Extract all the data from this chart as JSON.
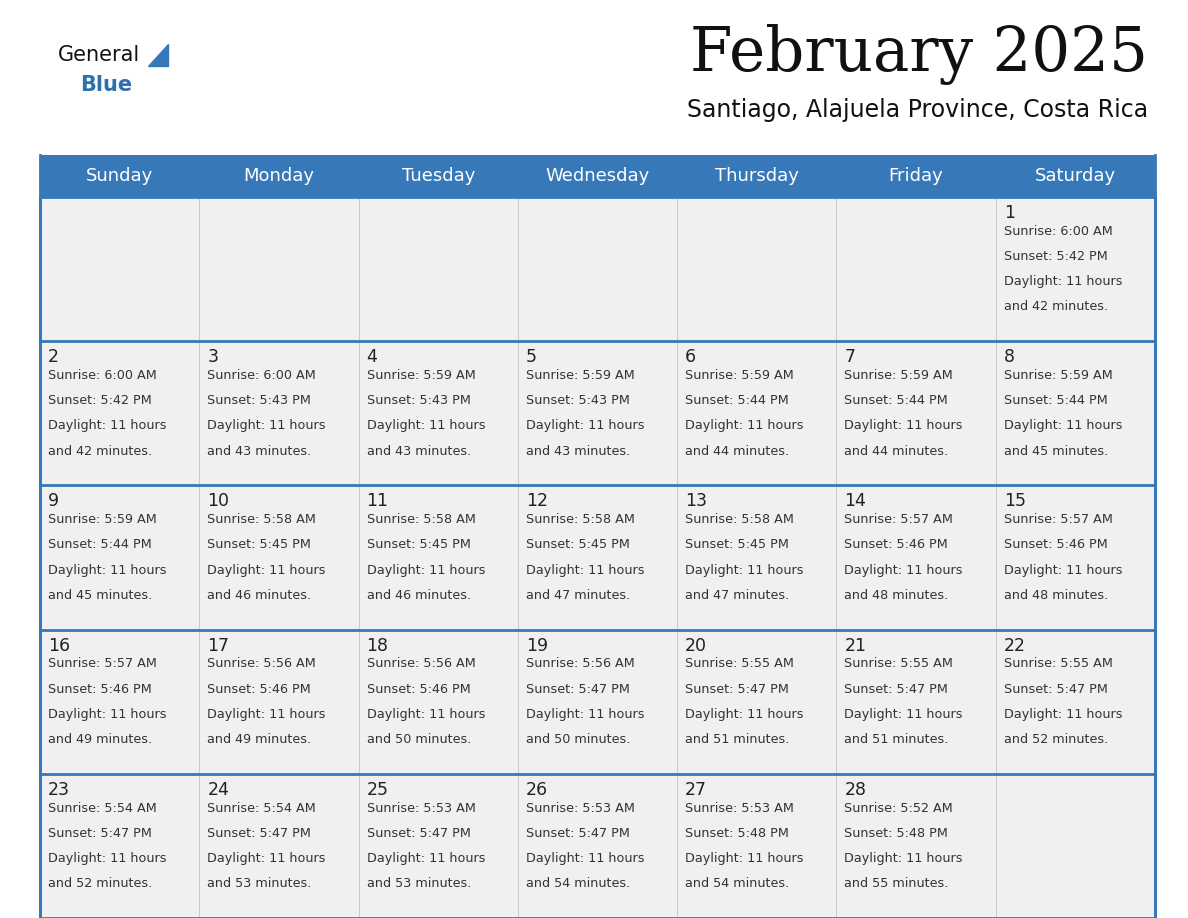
{
  "title": "February 2025",
  "subtitle": "Santiago, Alajuela Province, Costa Rica",
  "days_of_week": [
    "Sunday",
    "Monday",
    "Tuesday",
    "Wednesday",
    "Thursday",
    "Friday",
    "Saturday"
  ],
  "header_bg": "#3778b8",
  "header_text": "#ffffff",
  "cell_bg": "#f0f0f0",
  "divider_color": "#3778b8",
  "text_color": "#333333",
  "day_num_color": "#222222",
  "title_color": "#111111",
  "subtitle_color": "#111111",
  "logo_text_color": "#111111",
  "logo_blue_color": "#2e6fad",
  "logo_triangle_color": "#3778b8",
  "calendar_data": [
    [
      null,
      null,
      null,
      null,
      null,
      null,
      {
        "day": 1,
        "sunrise": "6:00 AM",
        "sunset": "5:42 PM",
        "daylight_a": "Daylight: 11 hours",
        "daylight_b": "and 42 minutes."
      }
    ],
    [
      {
        "day": 2,
        "sunrise": "6:00 AM",
        "sunset": "5:42 PM",
        "daylight_a": "Daylight: 11 hours",
        "daylight_b": "and 42 minutes."
      },
      {
        "day": 3,
        "sunrise": "6:00 AM",
        "sunset": "5:43 PM",
        "daylight_a": "Daylight: 11 hours",
        "daylight_b": "and 43 minutes."
      },
      {
        "day": 4,
        "sunrise": "5:59 AM",
        "sunset": "5:43 PM",
        "daylight_a": "Daylight: 11 hours",
        "daylight_b": "and 43 minutes."
      },
      {
        "day": 5,
        "sunrise": "5:59 AM",
        "sunset": "5:43 PM",
        "daylight_a": "Daylight: 11 hours",
        "daylight_b": "and 43 minutes."
      },
      {
        "day": 6,
        "sunrise": "5:59 AM",
        "sunset": "5:44 PM",
        "daylight_a": "Daylight: 11 hours",
        "daylight_b": "and 44 minutes."
      },
      {
        "day": 7,
        "sunrise": "5:59 AM",
        "sunset": "5:44 PM",
        "daylight_a": "Daylight: 11 hours",
        "daylight_b": "and 44 minutes."
      },
      {
        "day": 8,
        "sunrise": "5:59 AM",
        "sunset": "5:44 PM",
        "daylight_a": "Daylight: 11 hours",
        "daylight_b": "and 45 minutes."
      }
    ],
    [
      {
        "day": 9,
        "sunrise": "5:59 AM",
        "sunset": "5:44 PM",
        "daylight_a": "Daylight: 11 hours",
        "daylight_b": "and 45 minutes."
      },
      {
        "day": 10,
        "sunrise": "5:58 AM",
        "sunset": "5:45 PM",
        "daylight_a": "Daylight: 11 hours",
        "daylight_b": "and 46 minutes."
      },
      {
        "day": 11,
        "sunrise": "5:58 AM",
        "sunset": "5:45 PM",
        "daylight_a": "Daylight: 11 hours",
        "daylight_b": "and 46 minutes."
      },
      {
        "day": 12,
        "sunrise": "5:58 AM",
        "sunset": "5:45 PM",
        "daylight_a": "Daylight: 11 hours",
        "daylight_b": "and 47 minutes."
      },
      {
        "day": 13,
        "sunrise": "5:58 AM",
        "sunset": "5:45 PM",
        "daylight_a": "Daylight: 11 hours",
        "daylight_b": "and 47 minutes."
      },
      {
        "day": 14,
        "sunrise": "5:57 AM",
        "sunset": "5:46 PM",
        "daylight_a": "Daylight: 11 hours",
        "daylight_b": "and 48 minutes."
      },
      {
        "day": 15,
        "sunrise": "5:57 AM",
        "sunset": "5:46 PM",
        "daylight_a": "Daylight: 11 hours",
        "daylight_b": "and 48 minutes."
      }
    ],
    [
      {
        "day": 16,
        "sunrise": "5:57 AM",
        "sunset": "5:46 PM",
        "daylight_a": "Daylight: 11 hours",
        "daylight_b": "and 49 minutes."
      },
      {
        "day": 17,
        "sunrise": "5:56 AM",
        "sunset": "5:46 PM",
        "daylight_a": "Daylight: 11 hours",
        "daylight_b": "and 49 minutes."
      },
      {
        "day": 18,
        "sunrise": "5:56 AM",
        "sunset": "5:46 PM",
        "daylight_a": "Daylight: 11 hours",
        "daylight_b": "and 50 minutes."
      },
      {
        "day": 19,
        "sunrise": "5:56 AM",
        "sunset": "5:47 PM",
        "daylight_a": "Daylight: 11 hours",
        "daylight_b": "and 50 minutes."
      },
      {
        "day": 20,
        "sunrise": "5:55 AM",
        "sunset": "5:47 PM",
        "daylight_a": "Daylight: 11 hours",
        "daylight_b": "and 51 minutes."
      },
      {
        "day": 21,
        "sunrise": "5:55 AM",
        "sunset": "5:47 PM",
        "daylight_a": "Daylight: 11 hours",
        "daylight_b": "and 51 minutes."
      },
      {
        "day": 22,
        "sunrise": "5:55 AM",
        "sunset": "5:47 PM",
        "daylight_a": "Daylight: 11 hours",
        "daylight_b": "and 52 minutes."
      }
    ],
    [
      {
        "day": 23,
        "sunrise": "5:54 AM",
        "sunset": "5:47 PM",
        "daylight_a": "Daylight: 11 hours",
        "daylight_b": "and 52 minutes."
      },
      {
        "day": 24,
        "sunrise": "5:54 AM",
        "sunset": "5:47 PM",
        "daylight_a": "Daylight: 11 hours",
        "daylight_b": "and 53 minutes."
      },
      {
        "day": 25,
        "sunrise": "5:53 AM",
        "sunset": "5:47 PM",
        "daylight_a": "Daylight: 11 hours",
        "daylight_b": "and 53 minutes."
      },
      {
        "day": 26,
        "sunrise": "5:53 AM",
        "sunset": "5:47 PM",
        "daylight_a": "Daylight: 11 hours",
        "daylight_b": "and 54 minutes."
      },
      {
        "day": 27,
        "sunrise": "5:53 AM",
        "sunset": "5:48 PM",
        "daylight_a": "Daylight: 11 hours",
        "daylight_b": "and 54 minutes."
      },
      {
        "day": 28,
        "sunrise": "5:52 AM",
        "sunset": "5:48 PM",
        "daylight_a": "Daylight: 11 hours",
        "daylight_b": "and 55 minutes."
      },
      null
    ]
  ]
}
